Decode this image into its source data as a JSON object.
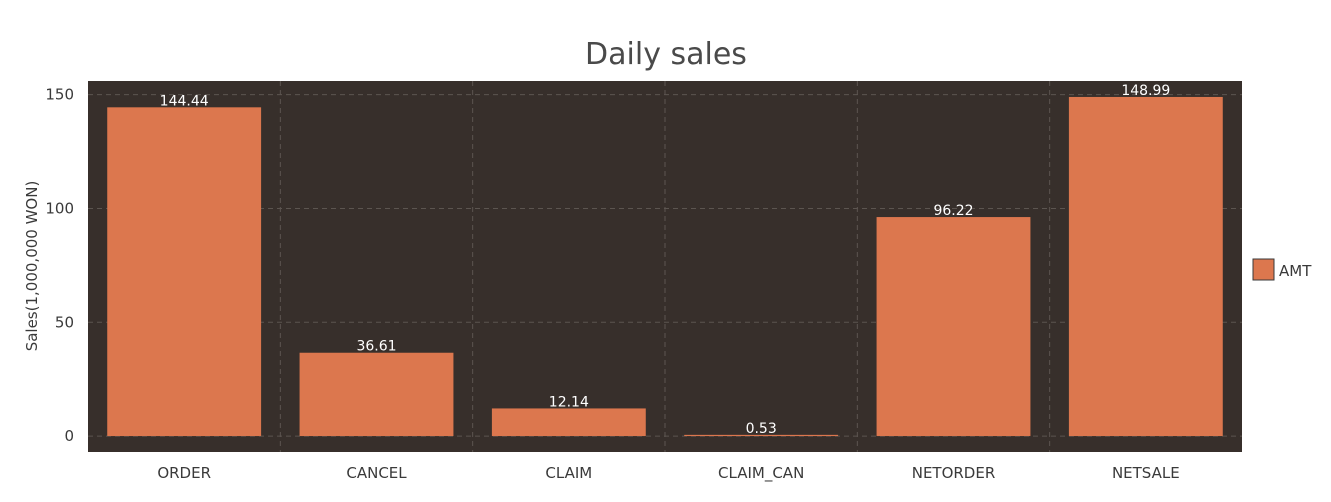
{
  "chart_data": {
    "type": "bar",
    "title": "Daily sales",
    "xlabel": "",
    "ylabel": "Sales(1,000,000 WON)",
    "categories": [
      "ORDER",
      "CANCEL",
      "CLAIM",
      "CLAIM_CAN",
      "NETORDER",
      "NETSALE"
    ],
    "series": [
      {
        "name": "AMT",
        "values": [
          144.44,
          36.61,
          12.14,
          0.53,
          96.22,
          148.99
        ],
        "labels": [
          "144.44",
          "36.61",
          "12.14",
          "0.53",
          "96.22",
          "148.99"
        ]
      }
    ],
    "yticks": [
      "0",
      "50",
      "100",
      "150"
    ],
    "ylim": [
      -7,
      156
    ],
    "grid": true,
    "legend_position": "right",
    "colors": {
      "plot_background": "#372f2b",
      "bar": "#dc774e",
      "grid": "#5c5550"
    }
  }
}
